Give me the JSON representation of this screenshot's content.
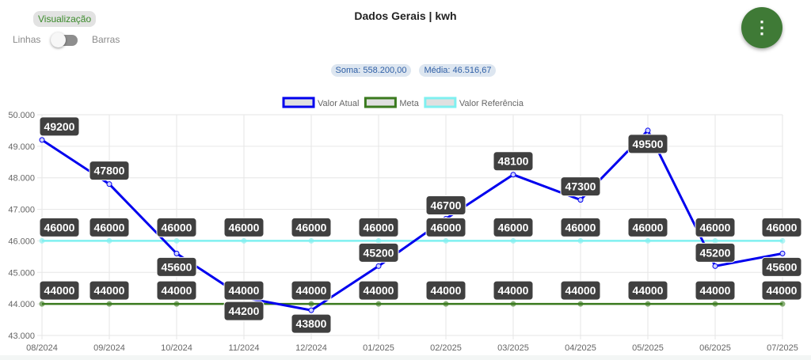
{
  "header": {
    "view_label": "Visualização",
    "toggle_left": "Linhas",
    "toggle_right": "Barras",
    "toggle_state": "Linhas",
    "title": "Dados Gerais | kwh",
    "menu_icon": "more-vertical-icon"
  },
  "stats": {
    "soma": "Soma:  558.200,00",
    "media": "Média:  46.516,67"
  },
  "colors": {
    "accent": "#3f7a36",
    "actual": "#0000ee",
    "meta": "#3a7a1e",
    "reference": "#7ff0f0"
  },
  "chart_data": {
    "type": "line",
    "title": "",
    "categories": [
      "08/2024",
      "09/2024",
      "10/2024",
      "11/2024",
      "12/2024",
      "01/2025",
      "02/2025",
      "03/2025",
      "04/2025",
      "05/2025",
      "06/2025",
      "07/2025"
    ],
    "ylim": [
      43000,
      50000
    ],
    "yticks": [
      "43.000",
      "44.000",
      "45.000",
      "46.000",
      "47.000",
      "48.000",
      "49.000",
      "50.000"
    ],
    "grid": true,
    "legend_position": "top",
    "series": [
      {
        "name": "Valor Atual",
        "color": "#0000ee",
        "values": [
          49200,
          47800,
          45600,
          44200,
          43800,
          45200,
          46700,
          48100,
          47300,
          49500,
          45200,
          45600
        ]
      },
      {
        "name": "Meta",
        "color": "#3a7a1e",
        "values": [
          44000,
          44000,
          44000,
          44000,
          44000,
          44000,
          44000,
          44000,
          44000,
          44000,
          44000,
          44000
        ]
      },
      {
        "name": "Valor Referência",
        "color": "#7ff0f0",
        "values": [
          46000,
          46000,
          46000,
          46000,
          46000,
          46000,
          46000,
          46000,
          46000,
          46000,
          46000,
          46000
        ]
      }
    ]
  }
}
